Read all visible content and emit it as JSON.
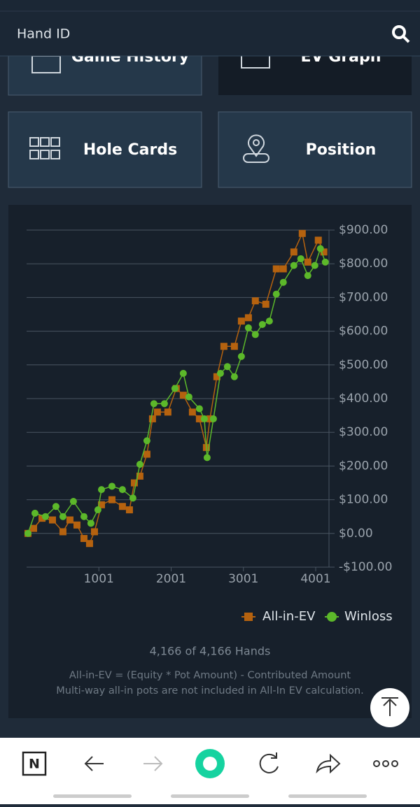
{
  "header": {
    "search_placeholder": "Hand ID"
  },
  "buttons": [
    "Game History",
    "EV Graph",
    "Hole Cards",
    "Position"
  ],
  "nav": {
    "logo": "N"
  },
  "chart_data": {
    "type": "line",
    "xlim": [
      1,
      4185
    ],
    "xticks": [
      1001,
      2001,
      3001,
      4001
    ],
    "ylim": [
      -100,
      900
    ],
    "yticks": [
      {
        "value": 900,
        "label": "$900.00"
      },
      {
        "value": 800,
        "label": "$800.00"
      },
      {
        "value": 700,
        "label": "$700.00"
      },
      {
        "value": 600,
        "label": "$600.00"
      },
      {
        "value": 500,
        "label": "$500.00"
      },
      {
        "value": 400,
        "label": "$400.00"
      },
      {
        "value": 300,
        "label": "$300.00"
      },
      {
        "value": 200,
        "label": "$200.00"
      },
      {
        "value": 100,
        "label": "$100.00"
      },
      {
        "value": 0,
        "label": "$0.00"
      },
      {
        "value": -100,
        "label": "-$100.00"
      }
    ],
    "grid": true,
    "series": [
      {
        "name": "All-in-EV",
        "color": "#b5620f",
        "marker": "square",
        "x": [
          20,
          98,
          214,
          359,
          504,
          601,
          698,
          795,
          872,
          940,
          1037,
          1182,
          1327,
          1424,
          1492,
          1569,
          1666,
          1743,
          1811,
          1956,
          2072,
          2169,
          2295,
          2392,
          2489,
          2537,
          2634,
          2731,
          2876,
          2973,
          3070,
          3166,
          3311,
          3456,
          3553,
          3699,
          3815,
          3892,
          4037,
          4114
        ],
        "values": [
          0,
          15,
          45,
          40,
          5,
          40,
          25,
          -15,
          -30,
          5,
          85,
          100,
          80,
          70,
          150,
          170,
          235,
          340,
          360,
          360,
          430,
          410,
          360,
          340,
          255,
          340,
          465,
          555,
          555,
          630,
          640,
          690,
          680,
          785,
          785,
          835,
          890,
          805,
          870,
          835
        ]
      },
      {
        "name": "Winloss",
        "color": "#5cb82a",
        "marker": "circle",
        "x": [
          20,
          117,
          262,
          407,
          504,
          649,
          795,
          891,
          988,
          1037,
          1182,
          1327,
          1472,
          1569,
          1666,
          1763,
          1908,
          2053,
          2169,
          2247,
          2392,
          2460,
          2499,
          2586,
          2683,
          2779,
          2876,
          2973,
          3070,
          3166,
          3263,
          3360,
          3456,
          3553,
          3699,
          3795,
          3892,
          3989,
          4066,
          4134
        ],
        "values": [
          0,
          60,
          50,
          80,
          50,
          95,
          50,
          30,
          70,
          130,
          140,
          130,
          105,
          205,
          275,
          385,
          385,
          430,
          475,
          405,
          370,
          340,
          225,
          340,
          475,
          495,
          465,
          525,
          610,
          590,
          620,
          630,
          710,
          745,
          795,
          815,
          765,
          795,
          845,
          805
        ]
      }
    ],
    "count_text": "4,166 of 4,166 Hands",
    "notes": [
      "All-in-EV = (Equity * Pot Amount) - Contributed Amount",
      "Multi-way all-in pots are not included in All-In EV calculation."
    ]
  }
}
